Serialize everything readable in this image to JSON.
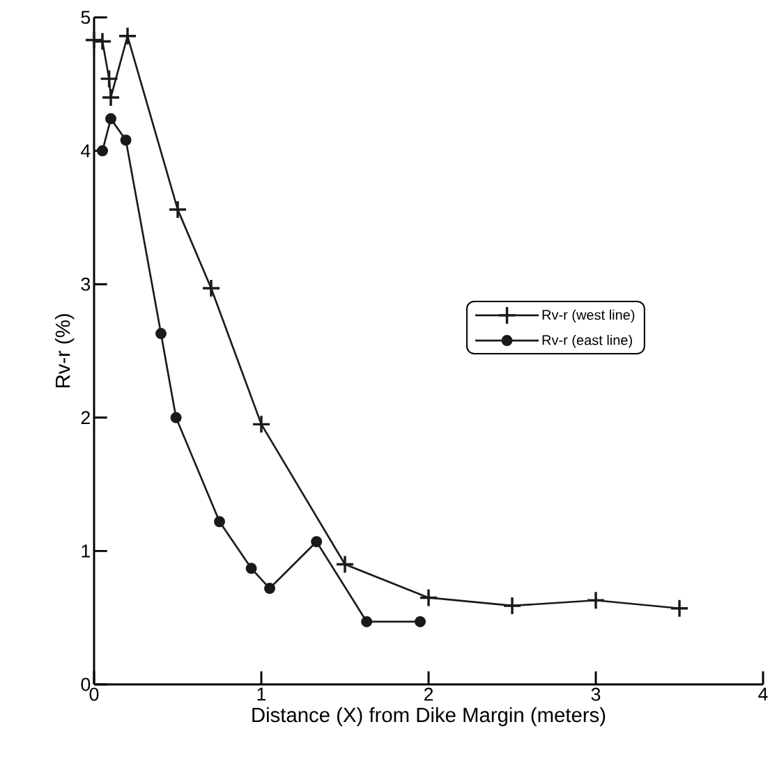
{
  "chart_data": {
    "type": "line",
    "xlabel": "Distance (X) from Dike Margin (meters)",
    "ylabel": "Rv-r (%)",
    "xlim": [
      0,
      4
    ],
    "ylim": [
      0,
      5
    ],
    "xticks": [
      0,
      1,
      2,
      3,
      4
    ],
    "yticks": [
      0,
      1,
      2,
      3,
      4,
      5
    ],
    "grid": false,
    "legend": "right",
    "line_style": "solid",
    "series": [
      {
        "name": "Rv-r (west line)",
        "color": "#1a1a1a",
        "marker": "cross",
        "x": [
          0.0,
          0.05,
          0.09,
          0.1,
          0.2,
          0.5,
          0.7,
          1.0,
          1.5,
          2.0,
          2.5,
          3.0,
          3.5
        ],
        "values": [
          4.83,
          4.82,
          4.54,
          4.4,
          4.86,
          3.56,
          2.97,
          1.95,
          0.9,
          0.65,
          0.59,
          0.63,
          0.57
        ]
      },
      {
        "name": "Rv-r (east line)",
        "color": "#1a1a1a",
        "marker": "circle",
        "x": [
          0.05,
          0.1,
          0.19,
          0.4,
          0.49,
          0.75,
          0.94,
          1.05,
          1.33,
          1.63,
          1.95
        ],
        "values": [
          4.0,
          4.24,
          4.08,
          2.63,
          2.0,
          1.22,
          0.87,
          0.72,
          1.07,
          0.47,
          0.47
        ]
      }
    ]
  }
}
